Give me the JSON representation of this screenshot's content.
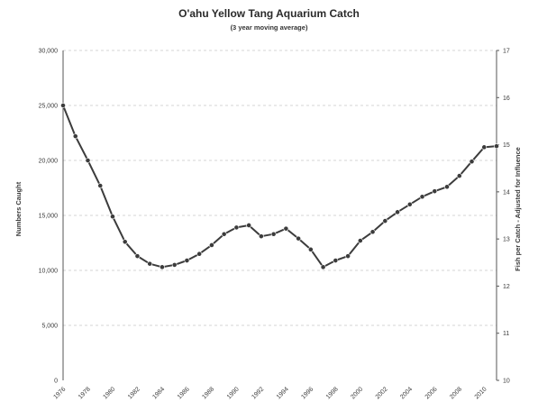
{
  "chart_data": {
    "type": "line",
    "title": "O'ahu Yellow Tang Aquarium Catch",
    "subtitle": "(3 year moving average)",
    "ylabel": "Numbers Caught",
    "y2label": "Fish per Catch - Adjusted for Influence",
    "y_tick_labels": [
      "0",
      "5,000",
      "10,000",
      "15,000",
      "20,000",
      "25,000",
      "30,000"
    ],
    "y_ticks": [
      0,
      5000,
      10000,
      15000,
      20000,
      25000,
      30000
    ],
    "ylim": [
      0,
      30000
    ],
    "y2_tick_labels": [
      "10",
      "11",
      "12",
      "13",
      "14",
      "15",
      "16",
      "17"
    ],
    "y2lim": [
      10,
      17
    ],
    "x_tick_labels": [
      "1976",
      "1978",
      "1980",
      "1982",
      "1984",
      "1986",
      "1988",
      "1990",
      "1992",
      "1994",
      "1996",
      "1998",
      "2000",
      "2002",
      "2004",
      "2006",
      "2008",
      "2010"
    ],
    "x": [
      1976,
      1977,
      1978,
      1979,
      1980,
      1981,
      1982,
      1983,
      1984,
      1985,
      1986,
      1987,
      1988,
      1989,
      1990,
      1991,
      1992,
      1993,
      1994,
      1995,
      1996,
      1997,
      1998,
      1999,
      2000,
      2001,
      2002,
      2003,
      2004,
      2005,
      2006,
      2007,
      2008,
      2009,
      2010,
      2011
    ],
    "xlim": [
      1976,
      2011
    ],
    "series": [
      {
        "values": [
          25000,
          22200,
          20000,
          17700,
          14900,
          12600,
          11300,
          10600,
          10300,
          10500,
          10900,
          11500,
          12300,
          13300,
          13900,
          14100,
          13100,
          13300,
          13800,
          12900,
          11900,
          10300,
          10900,
          11300,
          12700,
          13500,
          14500,
          15300,
          16000,
          16700,
          17200,
          17600,
          18600,
          19900,
          21200,
          21300
        ]
      }
    ],
    "grid": true,
    "grid_style": "dashed horizontal",
    "legend": "none",
    "colors": {
      "line": "#3c3c3c",
      "grid": "#d4d4d4",
      "axis": "#555555"
    }
  }
}
